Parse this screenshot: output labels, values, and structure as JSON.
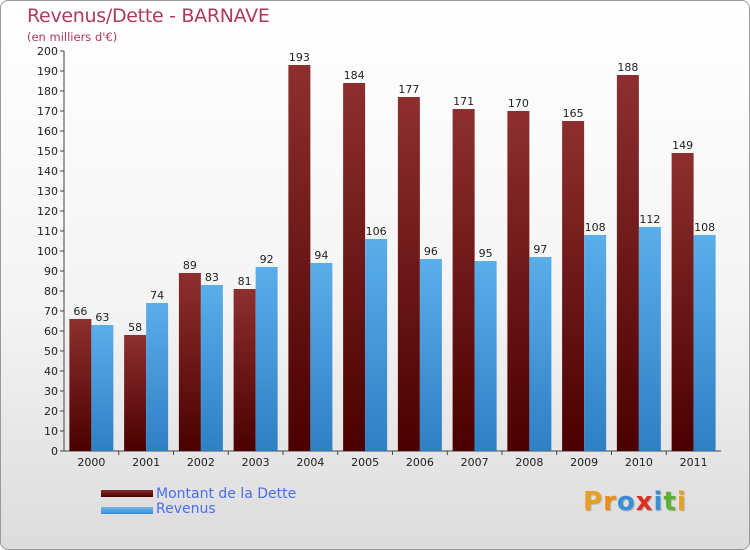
{
  "chart_data": {
    "type": "bar",
    "title": "Revenus/Dette - BARNAVE",
    "subtitle": "(en milliers d'€)",
    "categories": [
      "2000",
      "2001",
      "2002",
      "2003",
      "2004",
      "2005",
      "2006",
      "2007",
      "2008",
      "2009",
      "2010",
      "2011"
    ],
    "series": [
      {
        "name": "Montant de la Dette",
        "values": [
          66,
          58,
          89,
          81,
          193,
          184,
          177,
          171,
          170,
          165,
          188,
          149
        ],
        "color": "#7a1a1a"
      },
      {
        "name": "Revenus",
        "values": [
          63,
          74,
          83,
          92,
          94,
          106,
          96,
          95,
          97,
          108,
          112,
          108
        ],
        "color": "#4aa3e6"
      }
    ],
    "ylim": [
      0,
      200
    ],
    "ytick_step": 10,
    "grid": false,
    "legend_position": "bottom-left"
  },
  "logo": {
    "text": "Proxiti",
    "colors": [
      "#e8a020",
      "#f08a10",
      "#3a8ed8",
      "#d93020",
      "#3a8ed8",
      "#5cb030",
      "#e8a020"
    ]
  }
}
